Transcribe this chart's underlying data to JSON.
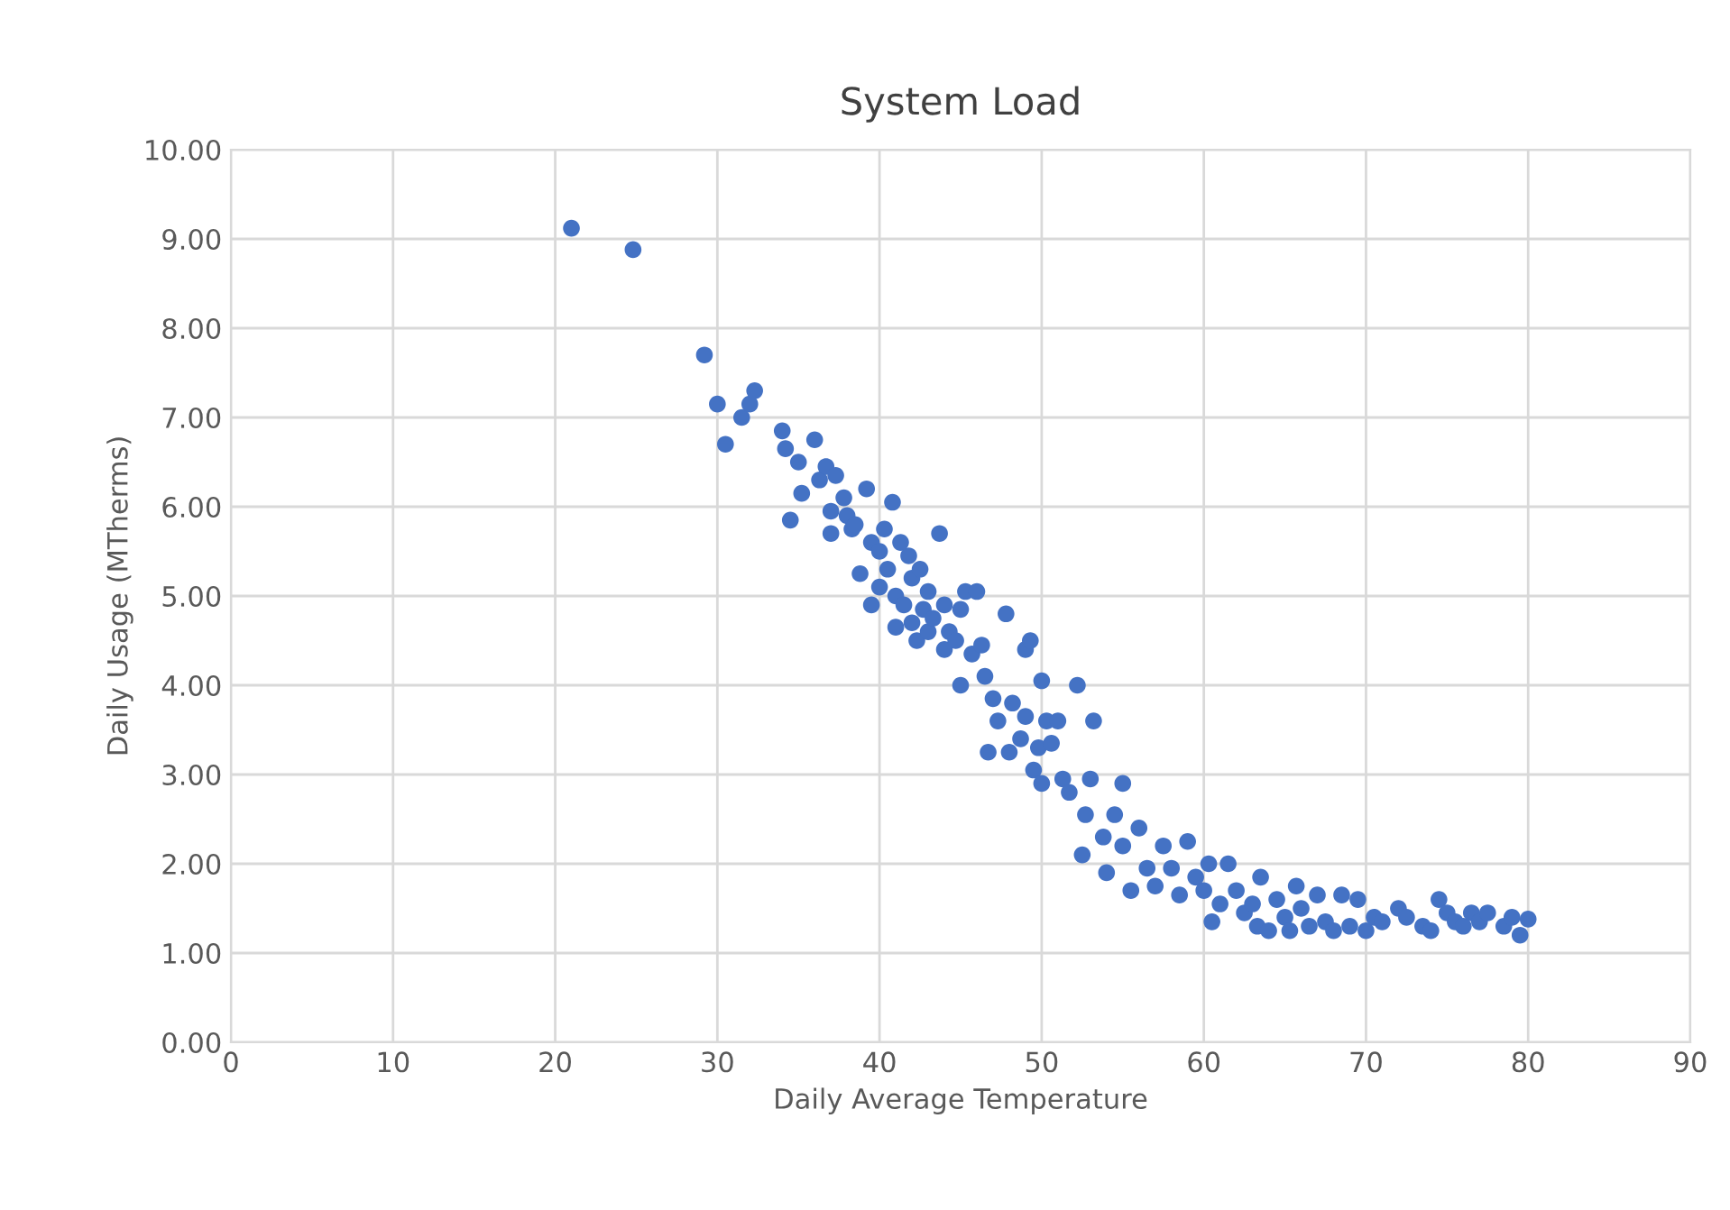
{
  "chart_data": {
    "type": "scatter",
    "title": "System Load",
    "xlabel": "Daily Average Temperature",
    "ylabel": "Daily Usage (MTherms)",
    "xlim": [
      0,
      90
    ],
    "xticks": [
      0,
      10,
      20,
      30,
      40,
      50,
      60,
      70,
      80,
      90
    ],
    "ylim": [
      0,
      10
    ],
    "yticks": [
      {
        "value": 0,
        "label": "0.00"
      },
      {
        "value": 1,
        "label": "1.00"
      },
      {
        "value": 2,
        "label": "2.00"
      },
      {
        "value": 3,
        "label": "3.00"
      },
      {
        "value": 4,
        "label": "4.00"
      },
      {
        "value": 5,
        "label": "5.00"
      },
      {
        "value": 6,
        "label": "6.00"
      },
      {
        "value": 7,
        "label": "7.00"
      },
      {
        "value": 8,
        "label": "8.00"
      },
      {
        "value": 9,
        "label": "9.00"
      },
      {
        "value": 10,
        "label": "10.00"
      }
    ],
    "grid": true,
    "marker": "circle",
    "series": [
      {
        "color": "#4472c4",
        "x": [
          21,
          24.8,
          29.2,
          30,
          30.5,
          31.5,
          32,
          32.3,
          34,
          34.2,
          34.5,
          35,
          35.2,
          36,
          36.3,
          36.7,
          37,
          37,
          37.3,
          37.8,
          38,
          38.3,
          38.5,
          38.8,
          39.2,
          39.5,
          39.5,
          40,
          40,
          40.3,
          40.5,
          40.8,
          41,
          41,
          41.3,
          41.5,
          41.8,
          42,
          42,
          42.3,
          42.5,
          42.7,
          43,
          43,
          43.3,
          43.7,
          44,
          44,
          44.3,
          44.7,
          45,
          45,
          45.3,
          45.7,
          46,
          46.3,
          46.5,
          46.7,
          47,
          47.3,
          47.8,
          48,
          48.2,
          48.7,
          49,
          49,
          49.3,
          49.5,
          49.8,
          50,
          50,
          50.3,
          50.6,
          51,
          51.3,
          51.7,
          52.2,
          52.5,
          52.7,
          53,
          53.2,
          53.8,
          54,
          54.5,
          55,
          55,
          55.5,
          56,
          56.5,
          57,
          57.5,
          58,
          58.5,
          59,
          59.5,
          60,
          60.3,
          60.5,
          61,
          61.5,
          62,
          62.5,
          63,
          63.3,
          63.5,
          64,
          64.5,
          65,
          65.3,
          65.7,
          66,
          66.5,
          67,
          67.5,
          68,
          68.5,
          69,
          69.5,
          70,
          70.5,
          71,
          72,
          72.5,
          73.5,
          74,
          74.5,
          75,
          75.5,
          76,
          76.5,
          77,
          77.5,
          78.5,
          79,
          79.5,
          80
        ],
        "values": [
          9.12,
          8.88,
          7.7,
          7.15,
          6.7,
          7.0,
          7.15,
          7.3,
          6.85,
          6.65,
          5.85,
          6.5,
          6.15,
          6.75,
          6.3,
          6.45,
          5.95,
          5.7,
          6.35,
          6.1,
          5.9,
          5.75,
          5.8,
          5.25,
          6.2,
          5.6,
          4.9,
          5.5,
          5.1,
          5.75,
          5.3,
          6.05,
          4.65,
          5.0,
          5.6,
          4.9,
          5.45,
          4.7,
          5.2,
          4.5,
          5.3,
          4.85,
          4.6,
          5.05,
          4.75,
          5.7,
          4.4,
          4.9,
          4.6,
          4.5,
          4.0,
          4.85,
          5.05,
          4.35,
          5.05,
          4.45,
          4.1,
          3.25,
          3.85,
          3.6,
          4.8,
          3.25,
          3.8,
          3.4,
          4.4,
          3.65,
          4.5,
          3.05,
          3.3,
          4.05,
          2.9,
          3.6,
          3.35,
          3.6,
          2.95,
          2.8,
          4.0,
          2.1,
          2.55,
          2.95,
          3.6,
          2.3,
          1.9,
          2.55,
          2.9,
          2.2,
          1.7,
          2.4,
          1.95,
          1.75,
          2.2,
          1.95,
          1.65,
          2.25,
          1.85,
          1.7,
          2.0,
          1.35,
          1.55,
          2.0,
          1.7,
          1.45,
          1.55,
          1.3,
          1.85,
          1.25,
          1.6,
          1.4,
          1.25,
          1.75,
          1.5,
          1.3,
          1.65,
          1.35,
          1.25,
          1.65,
          1.3,
          1.6,
          1.25,
          1.4,
          1.35,
          1.5,
          1.4,
          1.3,
          1.25,
          1.6,
          1.45,
          1.35,
          1.3,
          1.45,
          1.35,
          1.45,
          1.3,
          1.4,
          1.2,
          1.38
        ]
      }
    ]
  }
}
